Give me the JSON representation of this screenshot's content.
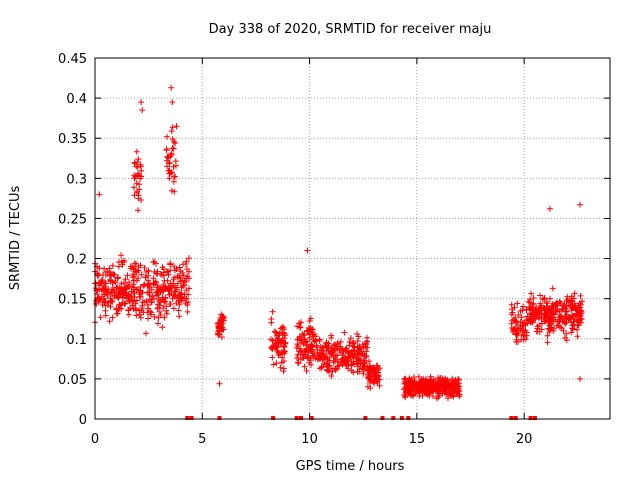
{
  "chart_data": {
    "type": "scatter",
    "title": "Day 338 of 2020, SRMTID for receiver maju",
    "xlabel": "GPS time / hours",
    "ylabel": "SRMTID / TECUs",
    "xlim": [
      0,
      24
    ],
    "ylim": [
      0,
      0.45
    ],
    "xticks": [
      0,
      5,
      10,
      15,
      20
    ],
    "xtick_labels": [
      "0",
      "5",
      "10",
      "15",
      "20"
    ],
    "yticks": [
      0,
      0.05,
      0.1,
      0.15,
      0.2,
      0.25,
      0.3,
      0.35,
      0.4,
      0.45
    ],
    "ytick_labels": [
      "0",
      "0.05",
      "0.1",
      "0.15",
      "0.2",
      "0.25",
      "0.3",
      "0.35",
      "0.4",
      "0.45"
    ],
    "grid": true,
    "marker": "plus",
    "color": "#ff0000",
    "series": [
      {
        "name": "SRMTID",
        "clusters": [
          {
            "x": [
              0.0,
              4.4
            ],
            "y_mean": 0.16,
            "y_spread": 0.06,
            "n": 420
          },
          {
            "x": [
              1.8,
              2.2
            ],
            "y_mean": 0.3,
            "y_spread": 0.06,
            "n": 30
          },
          {
            "x": [
              3.3,
              3.8
            ],
            "y_mean": 0.32,
            "y_spread": 0.06,
            "n": 35
          },
          {
            "x": [
              5.7,
              6.0
            ],
            "y_mean": 0.115,
            "y_spread": 0.025,
            "n": 40
          },
          {
            "x": [
              8.2,
              8.9
            ],
            "y_mean": 0.09,
            "y_spread": 0.05,
            "n": 70
          },
          {
            "x": [
              9.4,
              10.3
            ],
            "y_mean": 0.095,
            "y_spread": 0.05,
            "n": 90
          },
          {
            "x": [
              10.3,
              12.7
            ],
            "y_mean": 0.08,
            "y_spread": 0.035,
            "n": 220
          },
          {
            "x": [
              12.7,
              13.3
            ],
            "y_mean": 0.055,
            "y_spread": 0.025,
            "n": 70
          },
          {
            "x": [
              14.4,
              17.0
            ],
            "y_mean": 0.04,
            "y_spread": 0.018,
            "n": 380
          },
          {
            "x": [
              19.4,
              20.2
            ],
            "y_mean": 0.12,
            "y_spread": 0.04,
            "n": 60
          },
          {
            "x": [
              20.2,
              22.7
            ],
            "y_mean": 0.13,
            "y_spread": 0.04,
            "n": 260
          }
        ],
        "notable_points": [
          {
            "x": 0.2,
            "y": 0.28
          },
          {
            "x": 2.15,
            "y": 0.395
          },
          {
            "x": 2.2,
            "y": 0.385
          },
          {
            "x": 3.55,
            "y": 0.413
          },
          {
            "x": 3.6,
            "y": 0.395
          },
          {
            "x": 3.8,
            "y": 0.365
          },
          {
            "x": 5.8,
            "y": 0.044
          },
          {
            "x": 9.9,
            "y": 0.21
          },
          {
            "x": 21.2,
            "y": 0.262
          },
          {
            "x": 22.6,
            "y": 0.267
          },
          {
            "x": 22.6,
            "y": 0.05
          }
        ],
        "zero_values_x": [
          4.3,
          4.5,
          5.8,
          8.3,
          9.4,
          9.6,
          10.1,
          12.6,
          13.4,
          13.9,
          14.3,
          14.6,
          19.4,
          19.6,
          20.3,
          20.5
        ]
      }
    ]
  }
}
